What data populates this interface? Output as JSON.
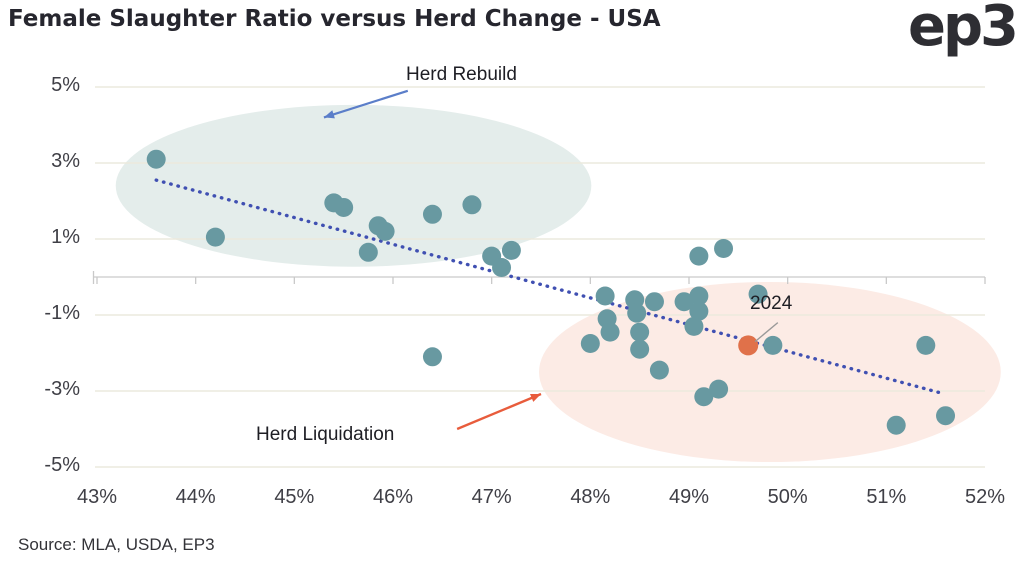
{
  "header": {
    "title": "Female Slaughter Ratio versus Herd Change - USA",
    "logo": "ep3"
  },
  "footer": {
    "source": "Source: MLA, USDA, EP3"
  },
  "chart_data": {
    "type": "scatter",
    "title": "Female Slaughter Ratio versus Herd Change - USA",
    "xlabel": "",
    "ylabel": "",
    "xlim": [
      43,
      52
    ],
    "ylim": [
      -5,
      5
    ],
    "grid": true,
    "x_ticks": [
      {
        "value": 43,
        "label": "43%"
      },
      {
        "value": 44,
        "label": "44%"
      },
      {
        "value": 45,
        "label": "45%"
      },
      {
        "value": 46,
        "label": "46%"
      },
      {
        "value": 47,
        "label": "47%"
      },
      {
        "value": 48,
        "label": "48%"
      },
      {
        "value": 49,
        "label": "49%"
      },
      {
        "value": 50,
        "label": "50%"
      },
      {
        "value": 51,
        "label": "51%"
      },
      {
        "value": 52,
        "label": "52%"
      }
    ],
    "y_ticks": [
      {
        "value": 5,
        "label": "5%"
      },
      {
        "value": 3,
        "label": "3%"
      },
      {
        "value": 1,
        "label": "1%"
      },
      {
        "value": -1,
        "label": "-1%"
      },
      {
        "value": -3,
        "label": "-3%"
      },
      {
        "value": -5,
        "label": "-5%"
      }
    ],
    "points": [
      [
        43.6,
        3.1
      ],
      [
        44.2,
        1.05
      ],
      [
        45.4,
        1.95
      ],
      [
        45.5,
        1.83
      ],
      [
        45.75,
        0.65
      ],
      [
        45.85,
        1.35
      ],
      [
        45.92,
        1.2
      ],
      [
        46.4,
        1.65
      ],
      [
        46.8,
        1.9
      ],
      [
        47.0,
        0.55
      ],
      [
        47.1,
        0.25
      ],
      [
        47.2,
        0.7
      ],
      [
        46.4,
        -2.1
      ],
      [
        48.0,
        -1.75
      ],
      [
        48.15,
        -0.5
      ],
      [
        48.17,
        -1.1
      ],
      [
        48.2,
        -1.45
      ],
      [
        48.45,
        -0.6
      ],
      [
        48.47,
        -0.95
      ],
      [
        48.5,
        -1.45
      ],
      [
        48.5,
        -1.9
      ],
      [
        48.65,
        -0.65
      ],
      [
        48.7,
        -2.45
      ],
      [
        48.95,
        -0.65
      ],
      [
        49.1,
        -0.5
      ],
      [
        49.1,
        -0.9
      ],
      [
        49.05,
        -1.3
      ],
      [
        49.1,
        0.55
      ],
      [
        49.35,
        0.75
      ],
      [
        49.15,
        -3.15
      ],
      [
        49.3,
        -2.95
      ],
      [
        49.7,
        -0.45
      ],
      [
        49.85,
        -1.8
      ],
      [
        51.4,
        -1.8
      ],
      [
        51.1,
        -3.9
      ],
      [
        51.6,
        -3.65
      ]
    ],
    "highlight_point": {
      "label": "2024",
      "x": 49.6,
      "y": -1.8
    },
    "trendline": {
      "x1": 43.6,
      "y1": 2.55,
      "x2": 51.55,
      "y2": -3.05,
      "style": "dotted"
    },
    "annotations": {
      "rebuild": {
        "label": "Herd Rebuild",
        "ellipse": {
          "cx": 45.6,
          "cy": 2.4,
          "rx": 2.41,
          "ry": 2.13
        },
        "arrow": {
          "x1": 46.15,
          "y1": 4.9,
          "x2": 45.3,
          "y2": 4.2
        }
      },
      "liquidation": {
        "label": "Herd Liquidation",
        "ellipse": {
          "cx": 49.82,
          "cy": -2.5,
          "rx": 2.34,
          "ry": 2.37
        },
        "arrow": {
          "x1": 46.65,
          "y1": -4.0,
          "x2": 47.5,
          "y2": -3.08
        }
      },
      "highlight_connector": {
        "x1": 49.9,
        "y1": -1.2,
        "x2": 49.67,
        "y2": -1.7
      }
    },
    "colors": {
      "point": "#6899a1",
      "highlight": "#e0714a",
      "trendline": "#4050b2",
      "grid": "#eceadd",
      "axis": "#c9c9c9",
      "rebuild_fill": "#e4edeb",
      "liquidation_fill": "#fcebe5",
      "rebuild_arrow": "#5b7ec9",
      "liquidation_arrow": "#e85c3c",
      "connector": "#999999",
      "tick_text": "#3f3f46"
    }
  }
}
